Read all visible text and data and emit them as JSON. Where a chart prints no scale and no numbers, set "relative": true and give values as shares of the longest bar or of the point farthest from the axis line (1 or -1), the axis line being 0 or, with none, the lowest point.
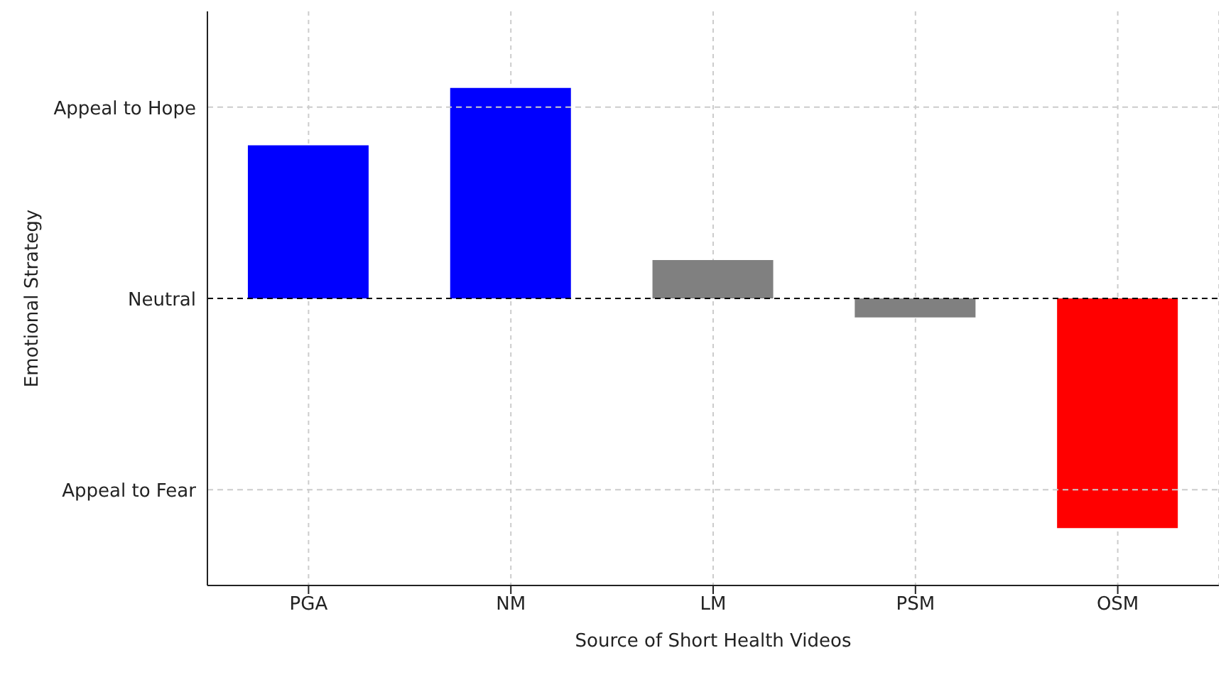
{
  "chart_data": {
    "type": "bar",
    "xlabel": "Source of Short Health Videos",
    "annotations": [
      "Emotional Strategy"
    ],
    "categories": [
      "PGA",
      "NM",
      "LM",
      "PSM",
      "OSM"
    ],
    "values": [
      0.667,
      0.917,
      0.167,
      -0.083,
      -1
    ],
    "colors": [
      "#0000ff",
      "#0000ff",
      "#808080",
      "#808080",
      "#ff0000"
    ],
    "relative": true,
    "ref_lines": [
      {
        "axis": "y",
        "value": 0.833,
        "label": "Appeal to Hope",
        "color": "#cccccc",
        "line_style": "dashed"
      },
      {
        "axis": "y",
        "value": 0,
        "label": "Neutral",
        "color": "#000000",
        "line_style": "dashed"
      },
      {
        "axis": "y",
        "value": -0.833,
        "label": "Appeal to Fear",
        "color": "#cccccc",
        "line_style": "dashed"
      }
    ],
    "grid": "x"
  }
}
